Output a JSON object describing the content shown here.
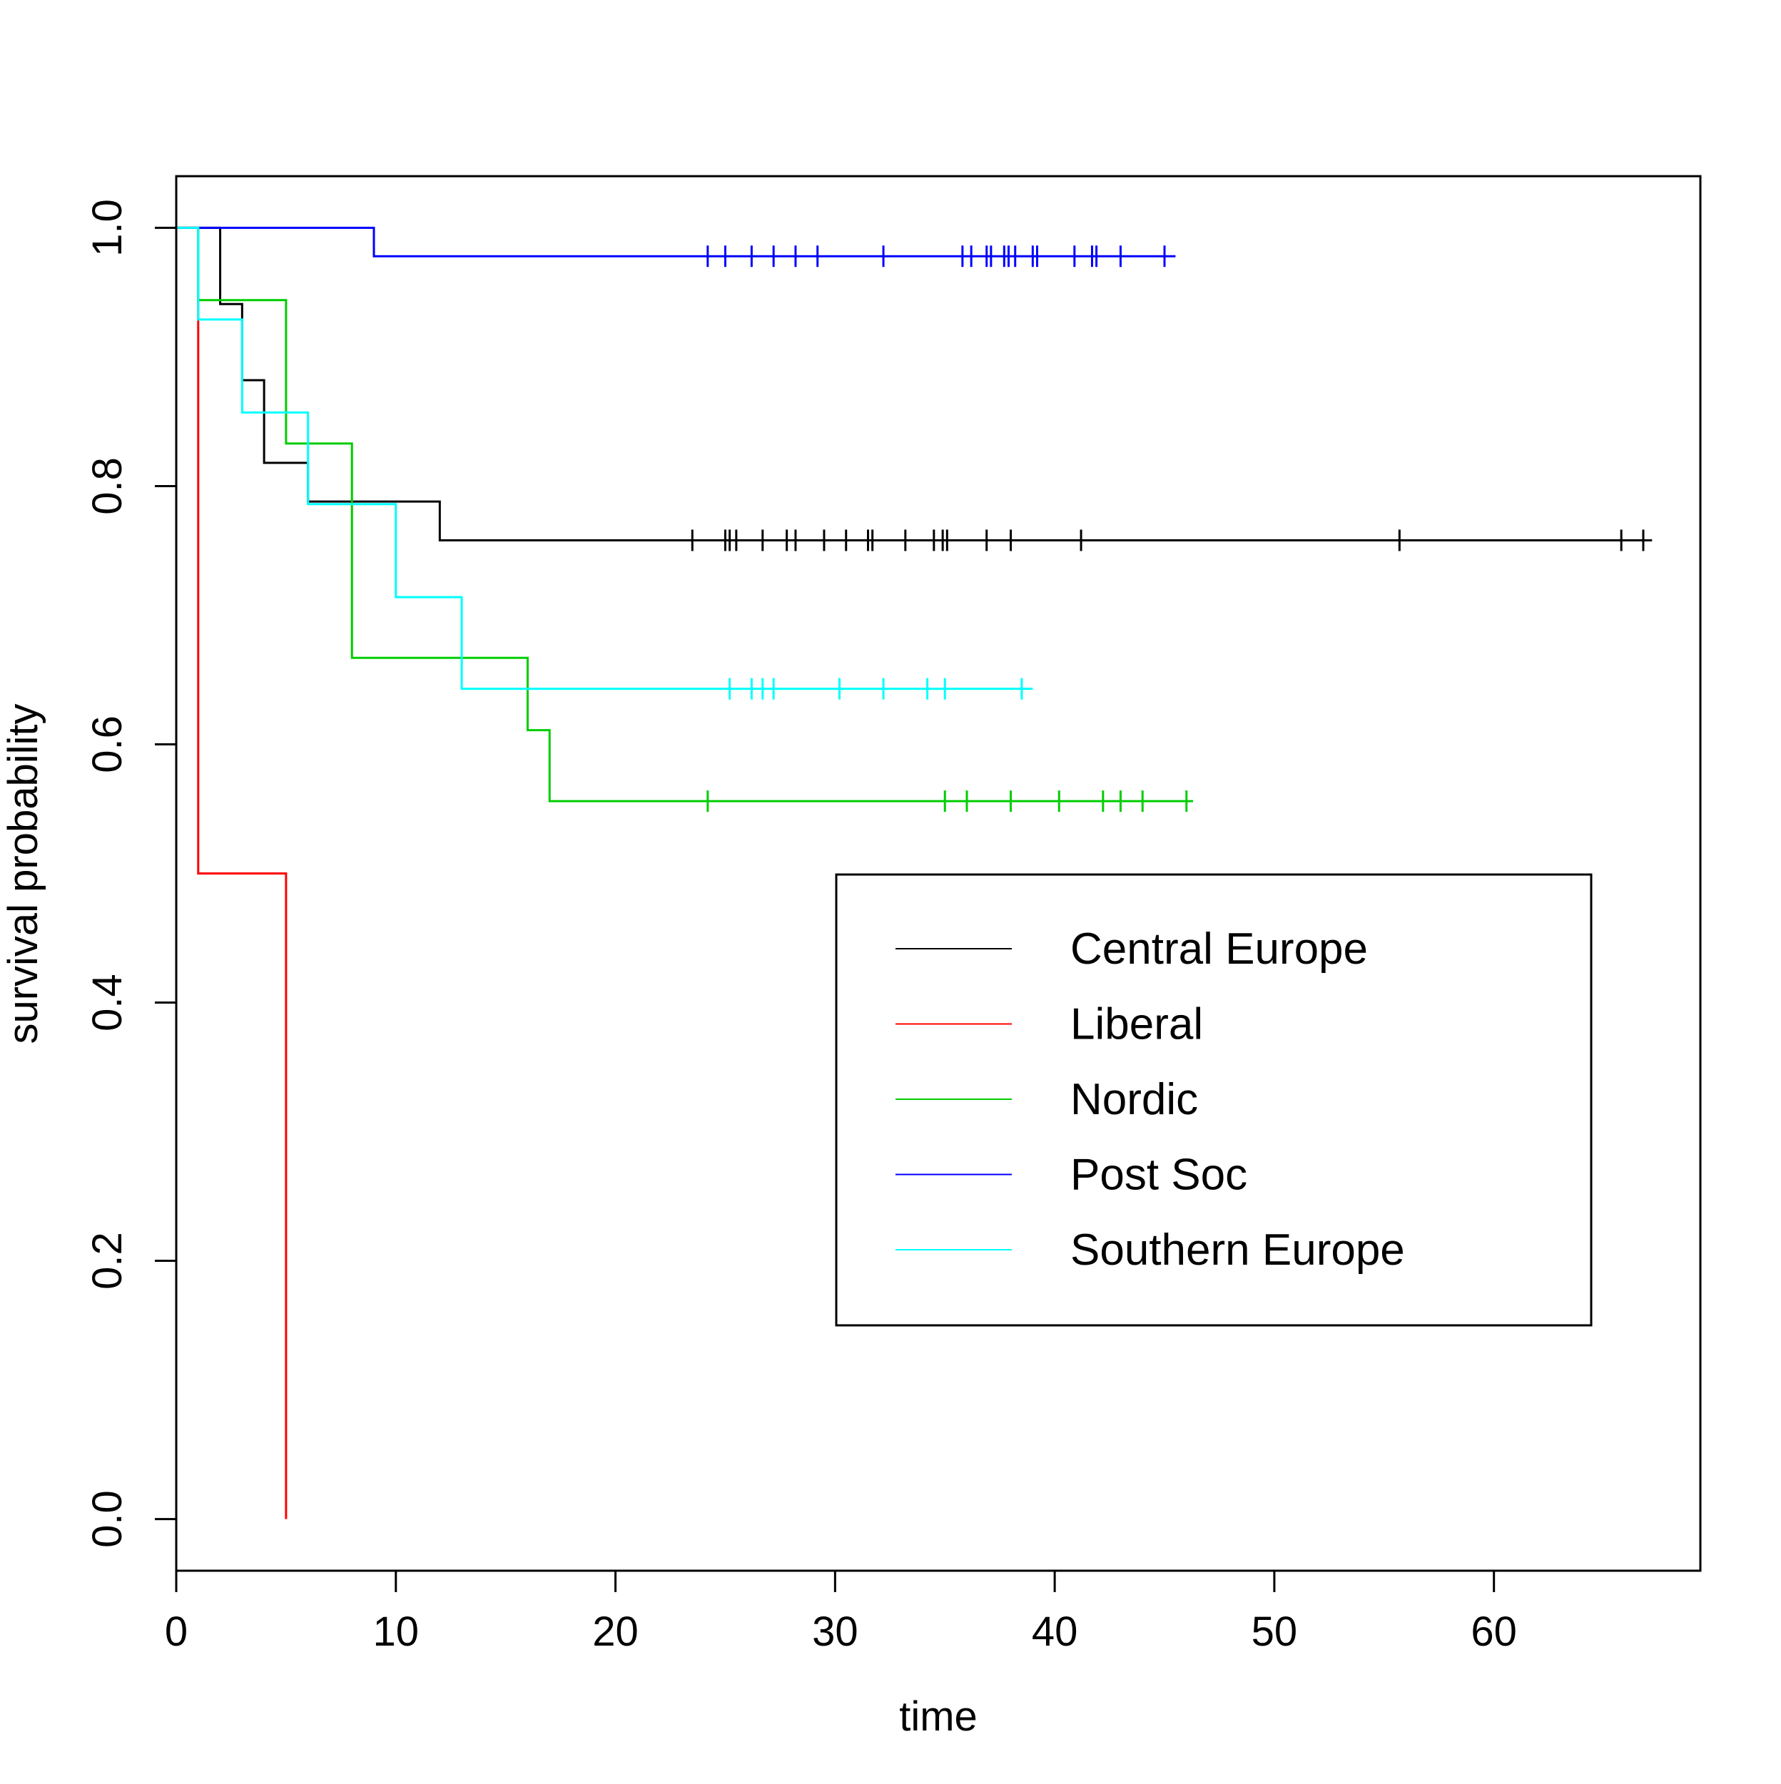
{
  "chart_data": {
    "type": "line",
    "subtype": "kaplan-meier step",
    "title": "",
    "xlabel": "time",
    "ylabel": "survival probability",
    "xlim": [
      0,
      69.4
    ],
    "ylim": [
      -0.04,
      1.04
    ],
    "x_ticks": [
      0,
      10,
      20,
      30,
      40,
      50,
      60
    ],
    "x_tick_labels": [
      "0",
      "10",
      "20",
      "30",
      "40",
      "50",
      "60"
    ],
    "y_ticks": [
      0.0,
      0.2,
      0.4,
      0.6,
      0.8,
      1.0
    ],
    "y_tick_labels": [
      "0.0",
      "0.2",
      "0.4",
      "0.6",
      "0.8",
      "1.0"
    ],
    "grid": false,
    "legend": {
      "placement": "center-right",
      "entries": [
        "Central Europe",
        "Liberal",
        "Nordic",
        "Post Soc",
        "Southern Europe"
      ]
    },
    "series": [
      {
        "name": "Central Europe",
        "color": "#000000",
        "steps": [
          [
            0,
            1.0
          ],
          [
            2,
            0.941
          ],
          [
            3,
            0.882
          ],
          [
            4,
            0.818
          ],
          [
            6,
            0.788
          ],
          [
            12,
            0.758
          ]
        ],
        "end_time": 67.2,
        "censor_times": [
          23.5,
          25.0,
          25.2,
          25.5,
          26.7,
          27.8,
          28.2,
          29.5,
          30.5,
          31.5,
          31.7,
          33.2,
          34.5,
          34.9,
          35.1,
          36.9,
          38.0,
          41.2,
          55.7,
          65.8,
          66.8
        ]
      },
      {
        "name": "Liberal",
        "color": "#ff0000",
        "steps": [
          [
            0,
            1.0
          ],
          [
            1,
            0.5
          ],
          [
            5,
            0.0
          ]
        ],
        "end_time": 5,
        "censor_times": []
      },
      {
        "name": "Nordic",
        "color": "#00cd00",
        "steps": [
          [
            0,
            1.0
          ],
          [
            1,
            0.944
          ],
          [
            5,
            0.833
          ],
          [
            8,
            0.667
          ],
          [
            16,
            0.611
          ],
          [
            17,
            0.556
          ]
        ],
        "end_time": 46.3,
        "censor_times": [
          24.2,
          35.0,
          36.0,
          38.0,
          40.2,
          42.2,
          43.0,
          44.0,
          46.0
        ]
      },
      {
        "name": "Post Soc",
        "color": "#0000ff",
        "steps": [
          [
            0,
            1.0
          ],
          [
            9,
            0.978
          ]
        ],
        "end_time": 45.5,
        "censor_times": [
          24.2,
          25.0,
          26.2,
          27.2,
          28.2,
          29.2,
          32.2,
          35.8,
          36.2,
          36.9,
          37.1,
          37.7,
          37.9,
          38.2,
          39.0,
          39.2,
          40.9,
          41.7,
          41.9,
          43.0,
          45.0
        ]
      },
      {
        "name": "Southern Europe",
        "color": "#00ffff",
        "steps": [
          [
            0,
            1.0
          ],
          [
            1,
            0.929
          ],
          [
            3,
            0.857
          ],
          [
            6,
            0.786
          ],
          [
            10,
            0.714
          ],
          [
            13,
            0.643
          ]
        ],
        "end_time": 39.0,
        "censor_times": [
          25.2,
          26.2,
          26.7,
          27.2,
          30.2,
          32.2,
          34.2,
          35.0,
          38.5
        ]
      }
    ]
  }
}
